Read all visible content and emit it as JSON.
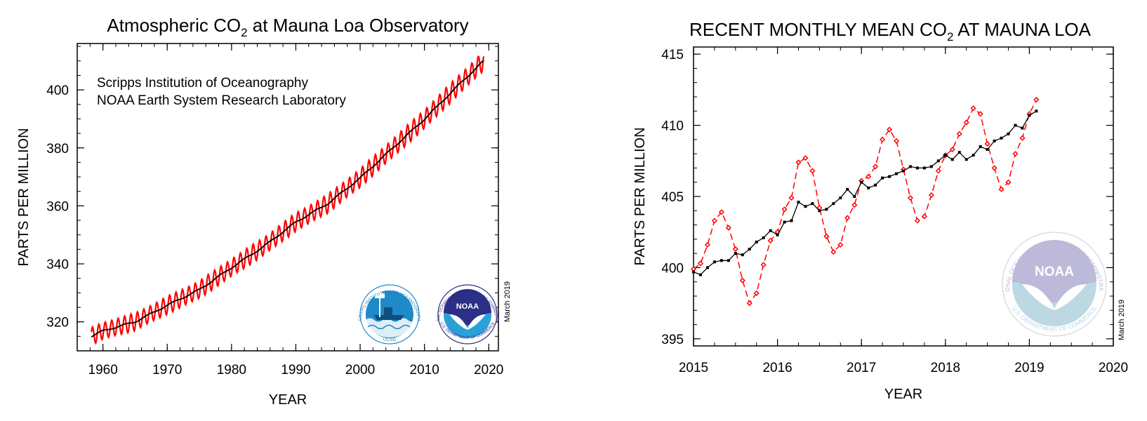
{
  "colors": {
    "monthly": "#ff0000",
    "trend": "#000000",
    "scripps_blue": "#1f8ac7",
    "noaa_navy": "#2b2f86",
    "noaa_light": "#2aa0d8",
    "noaa_faded_top": "#b9b6d8",
    "noaa_faded_bottom": "#b9d8e2"
  },
  "chart_data": [
    {
      "type": "line",
      "title_main": "Atmospheric CO",
      "title_sub": "2",
      "title_rest": " at Mauna Loa Observatory",
      "xlabel": "YEAR",
      "ylabel": "PARTS PER MILLION",
      "xlim": [
        1956,
        2021.5
      ],
      "ylim": [
        310,
        416
      ],
      "x_ticks": [
        1960,
        1970,
        1980,
        1990,
        2000,
        2010,
        2020
      ],
      "y_ticks": [
        320,
        340,
        360,
        380,
        400
      ],
      "source_lines": [
        "Scripps Institution of Oceanography",
        "NOAA Earth System Research Laboratory"
      ],
      "date_stamp": "March 2019",
      "grid": false,
      "x_range": [
        1958.2,
        2019.2
      ],
      "trend_points": [
        [
          1958.2,
          315.0
        ],
        [
          1960,
          316.9
        ],
        [
          1965,
          320.0
        ],
        [
          1970,
          325.7
        ],
        [
          1975,
          331.1
        ],
        [
          1980,
          338.7
        ],
        [
          1985,
          346.0
        ],
        [
          1990,
          354.4
        ],
        [
          1995,
          360.8
        ],
        [
          2000,
          369.6
        ],
        [
          2005,
          379.8
        ],
        [
          2010,
          389.9
        ],
        [
          2015,
          401.0
        ],
        [
          2019.2,
          410.0
        ]
      ],
      "seasonal_amplitude_ppm": [
        [
          1958,
          2.9
        ],
        [
          2019,
          3.3
        ]
      ],
      "series": [
        {
          "name": "",
          "color_key": "monthly",
          "kind": "monthly"
        },
        {
          "name": "",
          "color_key": "trend",
          "kind": "trend"
        }
      ],
      "logos": [
        {
          "name": "scripps-ucsd-logo",
          "text": "SCRIPPS INSTITUTION OF OCEANOGRAPHY",
          "sub": "UCSD"
        },
        {
          "name": "noaa-logo",
          "text": "NATIONAL OCEANIC AND ATMOSPHERIC ADMINISTRATION",
          "mark": "NOAA",
          "sub": "U.S. DEPARTMENT OF COMMERCE"
        }
      ]
    },
    {
      "type": "line",
      "title_main": "RECENT MONTHLY MEAN CO",
      "title_sub": "2",
      "title_rest": " AT MAUNA LOA",
      "xlabel": "YEAR",
      "ylabel": "PARTS PER MILLION",
      "xlim": [
        2015,
        2020
      ],
      "ylim": [
        394.5,
        415.5
      ],
      "x_ticks": [
        2015,
        2016,
        2017,
        2018,
        2019,
        2020
      ],
      "y_ticks": [
        395,
        400,
        405,
        410,
        415
      ],
      "date_stamp": "March 2019",
      "grid": false,
      "x_start": 2015.0,
      "x_step": 0.0833333,
      "series": [
        {
          "name": "",
          "color_key": "monthly",
          "kind": "monthly",
          "values": [
            399.9,
            400.3,
            401.6,
            403.3,
            403.9,
            402.8,
            401.3,
            399.1,
            397.5,
            398.2,
            400.2,
            401.9,
            402.5,
            404.1,
            404.9,
            407.4,
            407.7,
            406.8,
            404.2,
            402.2,
            401.1,
            401.6,
            403.5,
            404.4,
            406.1,
            406.4,
            407.1,
            409.0,
            409.7,
            408.9,
            406.9,
            404.9,
            403.3,
            403.6,
            405.1,
            406.8,
            407.9,
            408.3,
            409.4,
            410.2,
            411.2,
            410.8,
            408.7,
            407.0,
            405.5,
            406.0,
            408.0,
            409.1,
            410.8,
            411.8
          ]
        },
        {
          "name": "",
          "color_key": "trend",
          "kind": "trend",
          "values": [
            399.7,
            399.5,
            400.0,
            400.4,
            400.5,
            400.5,
            401.0,
            400.9,
            401.3,
            401.8,
            402.1,
            402.6,
            402.3,
            403.2,
            403.3,
            404.6,
            404.3,
            404.5,
            404.0,
            404.1,
            404.5,
            404.9,
            405.5,
            405.0,
            406.0,
            405.6,
            405.8,
            406.3,
            406.4,
            406.6,
            406.8,
            407.1,
            407.0,
            407.0,
            407.1,
            407.5,
            407.9,
            407.6,
            408.1,
            407.6,
            407.9,
            408.5,
            408.3,
            408.9,
            409.1,
            409.4,
            410.0,
            409.8,
            410.7,
            411.0
          ]
        }
      ],
      "logos": [
        {
          "name": "noaa-faded-logo",
          "text": "NATIONAL OCEANIC AND ATMOSPHERIC ADMINISTRATION",
          "mark": "NOAA",
          "sub": "U.S. DEPARTMENT OF COMMERCE"
        }
      ]
    }
  ]
}
